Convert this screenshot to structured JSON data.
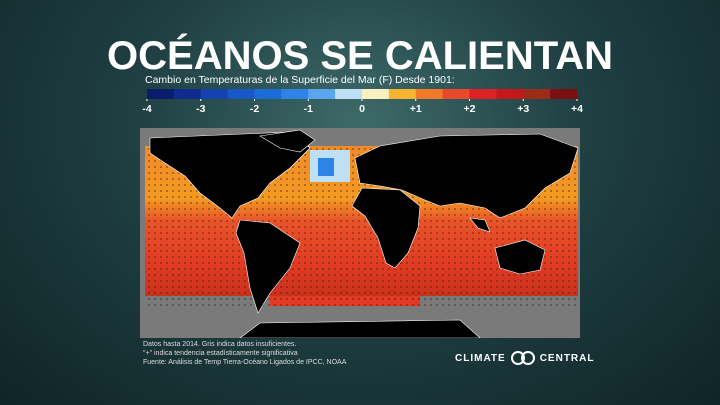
{
  "header": {
    "title": "OCÉANOS SE CALIENTAN",
    "subtitle": "Cambio en Temperaturas de la Superficie del Mar (F) Desde 1901:"
  },
  "legend": {
    "range": [
      -4,
      4
    ],
    "ticks": [
      -4,
      -3,
      -2,
      -1,
      0,
      {
        "value": 1,
        "label": "+1"
      },
      {
        "value": 2,
        "label": "+2"
      },
      {
        "value": 3,
        "label": "+3"
      },
      {
        "value": 4,
        "label": "+4"
      }
    ],
    "colors": [
      "#0b1c6c",
      "#0f2c8c",
      "#1442b0",
      "#1857c8",
      "#1c6cd8",
      "#2e84e6",
      "#5aa6ee",
      "#bfe0f4",
      "#fbf1c0",
      "#f6b430",
      "#f07a2a",
      "#e9482a",
      "#dc2226",
      "#c2181e",
      "#9e2a18",
      "#7a1010"
    ]
  },
  "footnotes": [
    "Datos hasta 2014. Gris indica datos insuficientes.",
    "\"+\" indica tendencia estadísticamente significativa",
    "Fuente: Análisis de Temp Tierra-Océano Ligados de IPCC, NOAA"
  ],
  "brand": [
    "CLIMATE",
    "CENTRAL"
  ]
}
